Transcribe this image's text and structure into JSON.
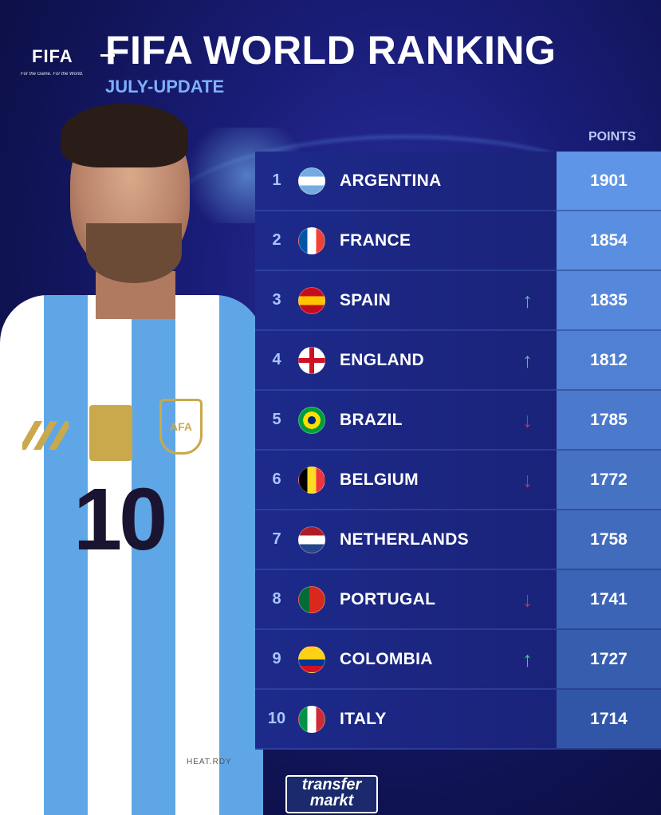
{
  "header": {
    "logo": "FIFA",
    "tagline": "For the Game. For the World.",
    "title": "FIFA WORLD RANKING",
    "subtitle": "JULY-UPDATE",
    "points_label": "POINTS"
  },
  "player": {
    "shirt_number": "10",
    "crest_text": "AFA",
    "brand_text": "HEAT.RDY"
  },
  "rankings": [
    {
      "rank": "1",
      "country": "ARGENTINA",
      "points": "1901",
      "trend": "none",
      "flag": [
        "#74acdf",
        "#ffffff",
        "#74acdf"
      ],
      "flag_dir": "h",
      "points_bg": "#5f95e6"
    },
    {
      "rank": "2",
      "country": "FRANCE",
      "points": "1854",
      "trend": "none",
      "flag": [
        "#0055a4",
        "#ffffff",
        "#ef4135"
      ],
      "flag_dir": "v",
      "points_bg": "#5a8ee0"
    },
    {
      "rank": "3",
      "country": "SPAIN",
      "points": "1835",
      "trend": "up",
      "flag": [
        "#c60b1e",
        "#ffc400",
        "#c60b1e"
      ],
      "flag_dir": "h",
      "points_bg": "#5587da"
    },
    {
      "rank": "4",
      "country": "ENGLAND",
      "points": "1812",
      "trend": "up",
      "flag": [
        "#ffffff",
        "#ce1124",
        "#ffffff"
      ],
      "flag_dir": "cross",
      "points_bg": "#5080d3"
    },
    {
      "rank": "5",
      "country": "BRAZIL",
      "points": "1785",
      "trend": "down",
      "flag": [
        "#009c3b",
        "#ffdf00",
        "#002776"
      ],
      "flag_dir": "diamond",
      "points_bg": "#4b79cc"
    },
    {
      "rank": "6",
      "country": "BELGIUM",
      "points": "1772",
      "trend": "down",
      "flag": [
        "#000000",
        "#fdda24",
        "#ef3340"
      ],
      "flag_dir": "v",
      "points_bg": "#4672c4"
    },
    {
      "rank": "7",
      "country": "NETHERLANDS",
      "points": "1758",
      "trend": "none",
      "flag": [
        "#ae1c28",
        "#ffffff",
        "#21468b"
      ],
      "flag_dir": "h",
      "points_bg": "#416bbd"
    },
    {
      "rank": "8",
      "country": "PORTUGAL",
      "points": "1741",
      "trend": "down",
      "flag": [
        "#046a38",
        "#da291c",
        "#da291c"
      ],
      "flag_dir": "v2",
      "points_bg": "#3c64b6"
    },
    {
      "rank": "9",
      "country": "COLOMBIA",
      "points": "1727",
      "trend": "up",
      "flag": [
        "#fcd116",
        "#003893",
        "#ce1126"
      ],
      "flag_dir": "col",
      "points_bg": "#375dae"
    },
    {
      "rank": "10",
      "country": "ITALY",
      "points": "1714",
      "trend": "none",
      "flag": [
        "#009246",
        "#ffffff",
        "#ce2b37"
      ],
      "flag_dir": "v",
      "points_bg": "#3256a7"
    }
  ],
  "footer": {
    "brand_line1": "transfer",
    "brand_line2": "markt"
  }
}
